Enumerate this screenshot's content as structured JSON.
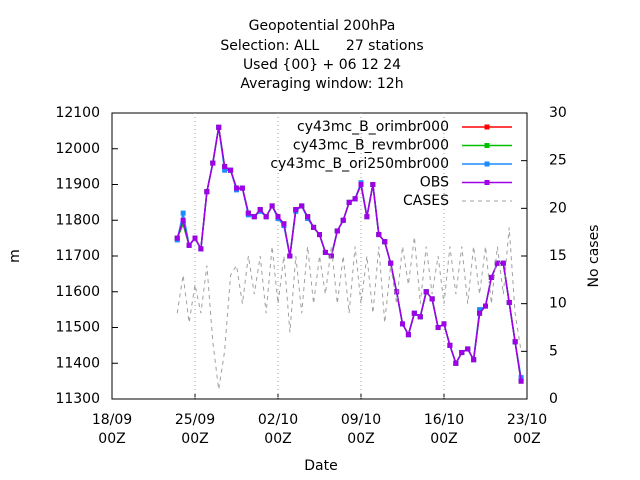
{
  "chart_data": {
    "type": "line",
    "title": [
      "Geopotential 200hPa",
      "Selection: ALL      27 stations",
      "Used {00} + 06 12 24",
      "Averaging window: 12h"
    ],
    "xlabel": "Date",
    "ylabel": "m",
    "y2label": "No cases",
    "xlim": [
      "18/09 00Z",
      "23/10 00Z"
    ],
    "xticks": [
      "18/09 00Z",
      "25/09 00Z",
      "02/10 00Z",
      "09/10 00Z",
      "16/10 00Z",
      "23/10 00Z"
    ],
    "ylim": [
      11300,
      12100
    ],
    "yticks": [
      11300,
      11400,
      11500,
      11600,
      11700,
      11800,
      11900,
      12000,
      12100
    ],
    "y2lim": [
      0,
      30
    ],
    "y2ticks": [
      0,
      5,
      10,
      15,
      20,
      25,
      30
    ],
    "grid": "x",
    "legend": "top-right",
    "x": [
      "23/09 12Z",
      "24/09 00Z",
      "24/09 12Z",
      "25/09 00Z",
      "25/09 12Z",
      "26/09 00Z",
      "26/09 12Z",
      "27/09 00Z",
      "27/09 12Z",
      "28/09 00Z",
      "28/09 12Z",
      "29/09 00Z",
      "29/09 12Z",
      "30/09 00Z",
      "30/09 12Z",
      "01/10 00Z",
      "01/10 12Z",
      "02/10 00Z",
      "02/10 12Z",
      "03/10 00Z",
      "03/10 12Z",
      "04/10 00Z",
      "04/10 12Z",
      "05/10 00Z",
      "05/10 12Z",
      "06/10 00Z",
      "06/10 12Z",
      "07/10 00Z",
      "07/10 12Z",
      "08/10 00Z",
      "08/10 12Z",
      "09/10 00Z",
      "09/10 12Z",
      "10/10 00Z",
      "10/10 12Z",
      "11/10 00Z",
      "11/10 12Z",
      "12/10 00Z",
      "12/10 12Z",
      "13/10 00Z",
      "13/10 12Z",
      "14/10 00Z",
      "14/10 12Z",
      "15/10 00Z",
      "15/10 12Z",
      "16/10 00Z",
      "16/10 12Z",
      "17/10 00Z",
      "17/10 12Z",
      "18/10 00Z",
      "18/10 12Z",
      "19/10 00Z",
      "19/10 12Z",
      "20/10 00Z",
      "20/10 12Z",
      "21/10 00Z",
      "21/10 12Z",
      "22/10 00Z",
      "22/10 12Z"
    ],
    "series": [
      {
        "name": "cy43mc_B_orimbr000",
        "color": "#ff0000",
        "values": [
          11750,
          11790,
          11730,
          11750,
          11720,
          11880,
          11960,
          12060,
          11950,
          11940,
          11890,
          11890,
          11820,
          11810,
          11830,
          11810,
          11840,
          11810,
          11790,
          11700,
          11830,
          11840,
          11810,
          11780,
          11760,
          11710,
          11700,
          11770,
          11800,
          11850,
          11860,
          11900,
          11810,
          11900,
          11760,
          11740,
          11680,
          11600,
          11510,
          11480,
          11540,
          11530,
          11600,
          11580,
          11500,
          11510,
          11450,
          11400,
          11430,
          11440,
          11410,
          11540,
          11560,
          11640,
          11680,
          11680,
          11570,
          11460,
          11350
        ]
      },
      {
        "name": "cy43mc_B_revmbr000",
        "color": "#00c000",
        "values": [
          11750,
          11790,
          11730,
          11750,
          11720,
          11880,
          11960,
          12060,
          11950,
          11940,
          11890,
          11890,
          11820,
          11810,
          11830,
          11810,
          11840,
          11810,
          11790,
          11700,
          11830,
          11840,
          11810,
          11780,
          11760,
          11710,
          11700,
          11770,
          11800,
          11850,
          11860,
          11900,
          11810,
          11900,
          11760,
          11740,
          11680,
          11600,
          11510,
          11480,
          11540,
          11530,
          11600,
          11580,
          11500,
          11510,
          11450,
          11400,
          11430,
          11440,
          11410,
          11540,
          11560,
          11640,
          11680,
          11680,
          11570,
          11460,
          11350
        ]
      },
      {
        "name": "cy43mc_B_ori250mbr000",
        "color": "#1a8cff",
        "values": [
          11745,
          11820,
          11730,
          11750,
          11720,
          11880,
          11960,
          12060,
          11940,
          11940,
          11885,
          11890,
          11815,
          11810,
          11825,
          11810,
          11840,
          11805,
          11785,
          11700,
          11825,
          11840,
          11805,
          11780,
          11760,
          11710,
          11700,
          11770,
          11800,
          11850,
          11860,
          11905,
          11810,
          11900,
          11760,
          11740,
          11680,
          11600,
          11510,
          11480,
          11540,
          11530,
          11600,
          11580,
          11500,
          11510,
          11450,
          11400,
          11430,
          11440,
          11410,
          11550,
          11560,
          11640,
          11680,
          11680,
          11570,
          11460,
          11360
        ]
      },
      {
        "name": "OBS",
        "color": "#a000e8",
        "values": [
          11750,
          11800,
          11730,
          11750,
          11720,
          11880,
          11960,
          12060,
          11950,
          11940,
          11890,
          11890,
          11820,
          11810,
          11830,
          11810,
          11840,
          11810,
          11790,
          11700,
          11830,
          11840,
          11810,
          11780,
          11760,
          11710,
          11700,
          11770,
          11800,
          11850,
          11860,
          11900,
          11810,
          11900,
          11760,
          11740,
          11680,
          11600,
          11510,
          11480,
          11540,
          11530,
          11600,
          11580,
          11500,
          11510,
          11450,
          11400,
          11430,
          11440,
          11410,
          11540,
          11560,
          11640,
          11680,
          11680,
          11570,
          11460,
          11350
        ]
      },
      {
        "name": "CASES",
        "color": "#a0a0a0",
        "axis": "y2",
        "dashed": true,
        "values": [
          9,
          13,
          8,
          12,
          9,
          14,
          6,
          1,
          5,
          13,
          14,
          10,
          15,
          11,
          15,
          9,
          16,
          10,
          15,
          7,
          15,
          9,
          16,
          10,
          15,
          11,
          16,
          10,
          15,
          9,
          16,
          10,
          15,
          9,
          16,
          8,
          14,
          10,
          16,
          12,
          17,
          10,
          16,
          11,
          15,
          10,
          16,
          11,
          16,
          10,
          16,
          11,
          16,
          10,
          16,
          11,
          18,
          9,
          5
        ]
      }
    ]
  }
}
